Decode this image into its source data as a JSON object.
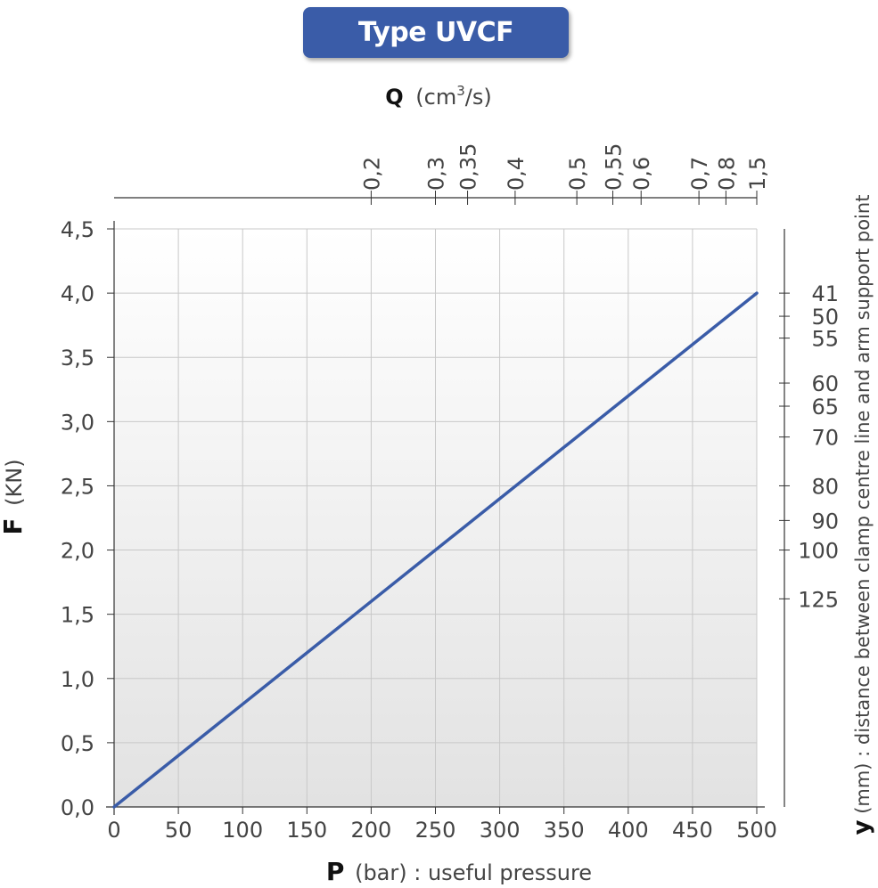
{
  "title": "Type UVCF",
  "chart_data": {
    "type": "line",
    "xlabel": {
      "symbol": "P",
      "unit": "(bar)",
      "desc": " : useful pressure"
    },
    "ylabel": {
      "symbol": "F",
      "unit": "(KN)"
    },
    "top_axis_label": {
      "symbol": "Q",
      "unit_a": "(cm",
      "unit_sup": "3",
      "unit_b": "/s)"
    },
    "right_axis_label": {
      "symbol": "y",
      "text": " (mm) : distance between clamp centre line and arm support point"
    },
    "xlim": [
      0,
      500
    ],
    "ylim": [
      0,
      4.5
    ],
    "x_ticks": [
      0,
      50,
      100,
      150,
      200,
      250,
      300,
      350,
      400,
      450,
      500
    ],
    "x_tick_labels": [
      "0",
      "50",
      "100",
      "150",
      "200",
      "250",
      "300",
      "350",
      "400",
      "450",
      "500"
    ],
    "y_ticks": [
      0,
      0.5,
      1.0,
      1.5,
      2.0,
      2.5,
      3.0,
      3.5,
      4.0,
      4.5
    ],
    "y_tick_labels": [
      "0,0",
      "0,5",
      "1,0",
      "1,5",
      "2,0",
      "2,5",
      "3,0",
      "3,5",
      "4,0",
      "4,5"
    ],
    "top_axis_ticks": [
      {
        "label": "0,2",
        "at_p": 200
      },
      {
        "label": "0,3",
        "at_p": 250
      },
      {
        "label": "0,35",
        "at_p": 275
      },
      {
        "label": "0,4",
        "at_p": 312
      },
      {
        "label": "0,5",
        "at_p": 360
      },
      {
        "label": "0,55",
        "at_p": 388
      },
      {
        "label": "0,6",
        "at_p": 410
      },
      {
        "label": "0,7",
        "at_p": 455
      },
      {
        "label": "0,8",
        "at_p": 476
      },
      {
        "label": "1,5",
        "at_p": 500
      }
    ],
    "right_axis_ticks": [
      {
        "label": "41",
        "at_f": 4.0
      },
      {
        "label": "50",
        "at_f": 3.82
      },
      {
        "label": "55",
        "at_f": 3.65
      },
      {
        "label": "60",
        "at_f": 3.3
      },
      {
        "label": "65",
        "at_f": 3.12
      },
      {
        "label": "70",
        "at_f": 2.88
      },
      {
        "label": "80",
        "at_f": 2.5
      },
      {
        "label": "90",
        "at_f": 2.23
      },
      {
        "label": "100",
        "at_f": 2.0
      },
      {
        "label": "125",
        "at_f": 1.62
      }
    ],
    "grid": true,
    "series": [
      {
        "x": [
          0,
          500
        ],
        "y": [
          0,
          4.0
        ],
        "color": "#3a5ca8"
      }
    ]
  }
}
